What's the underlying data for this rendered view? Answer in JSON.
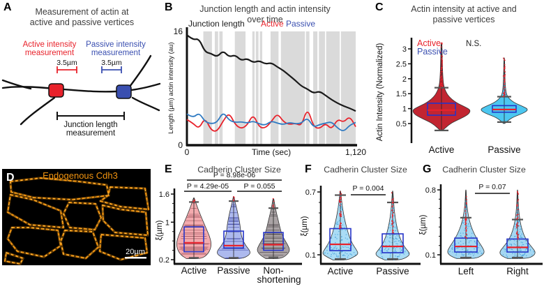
{
  "panel_a": {
    "label": "A",
    "title_line1": "Measurement of actin at",
    "title_line2": "active and passive vertices",
    "active_measure_line1": "Active intensity",
    "active_measure_line2": "measurement",
    "passive_measure_line1": "Passive intensity",
    "passive_measure_line2": "measurement",
    "active_scale": "3.5µm",
    "passive_scale": "3.5µm",
    "junction_line1": "Junction length",
    "junction_line2": "measurement",
    "active_color": "#e8222b",
    "passive_color": "#3a4fb0"
  },
  "panel_b": {
    "label": "B",
    "title_line1": "Junction length and actin intensity",
    "title_line2": "over time"
  },
  "panel_c": {
    "label": "C",
    "title_line1": "Actin intensity at active and",
    "title_line2": "passive vertices"
  },
  "panel_d": {
    "label": "D",
    "title": "Endogenous Cdh3",
    "scale_label": "20µm",
    "stain_color": "#f29410"
  },
  "panel_e": {
    "label": "E",
    "title": "Cadherin Cluster Size"
  },
  "panel_f": {
    "label": "F",
    "title": "Cadherin Cluster Size"
  },
  "panel_g": {
    "label": "G",
    "title": "Cadherin Cluster Size"
  },
  "chart_data": [
    {
      "id": "b_timeseries",
      "type": "line",
      "title": "Junction length and actin intensity over time",
      "xlabel": "Time (sec)",
      "ylabel": "Length (µm) actin intensity (au)",
      "xlim": [
        0,
        1120
      ],
      "ylim": [
        0,
        16
      ],
      "x_ticks": [
        [
          0,
          "0"
        ],
        [
          1120,
          "1,120"
        ]
      ],
      "y_ticks": [
        [
          16,
          "16"
        ],
        [
          0,
          "0"
        ]
      ],
      "legend": [
        {
          "label": "Junction length",
          "color": "#1a1a1a"
        },
        {
          "label": "Active",
          "color": "#e8222b"
        },
        {
          "label": "Passive",
          "color": "#3a4fb0"
        }
      ],
      "shaded_bands_x": [
        [
          109,
          166
        ],
        [
          185,
          207
        ],
        [
          215,
          237
        ],
        [
          318,
          389
        ],
        [
          434,
          449
        ],
        [
          457,
          475
        ],
        [
          484,
          500
        ],
        [
          555,
          608
        ],
        [
          624,
          783
        ],
        [
          790,
          813
        ],
        [
          838,
          866
        ],
        [
          876,
          916
        ],
        [
          924,
          1014
        ],
        [
          1022,
          1120
        ]
      ],
      "x": [
        0,
        40,
        80,
        120,
        160,
        200,
        240,
        280,
        320,
        360,
        400,
        440,
        480,
        520,
        560,
        600,
        640,
        680,
        720,
        760,
        800,
        840,
        880,
        920,
        960,
        1000,
        1040,
        1080,
        1120
      ],
      "series": [
        {
          "name": "Junction length",
          "color": "#1a1a1a",
          "y": [
            15.5,
            14.8,
            15.0,
            13.1,
            12.9,
            12.4,
            13.3,
            12.4,
            12.7,
            11.9,
            12.2,
            11.6,
            11.9,
            11.4,
            11.6,
            11.0,
            10.5,
            9.8,
            9.1,
            8.3,
            7.9,
            7.3,
            7.6,
            7.0,
            6.4,
            5.9,
            5.5,
            5.2,
            4.8
          ]
        },
        {
          "name": "Active",
          "color": "#e8222b",
          "y": [
            3.6,
            3.1,
            2.3,
            3.9,
            2.1,
            1.9,
            3.4,
            4.6,
            2.9,
            2.3,
            2.8,
            4.4,
            2.5,
            2.4,
            3.3,
            4.5,
            3.3,
            2.9,
            3.1,
            2.7,
            5.3,
            2.6,
            2.3,
            3.1,
            2.2,
            3.7,
            3.2,
            4.1,
            2.6
          ]
        },
        {
          "name": "Passive",
          "color": "#2f7ac2",
          "y": [
            4.4,
            3.8,
            4.6,
            3.3,
            3.0,
            3.2,
            4.7,
            3.5,
            3.2,
            3.3,
            3.1,
            3.4,
            3.0,
            2.8,
            3.4,
            3.1,
            2.9,
            3.2,
            3.0,
            3.1,
            3.9,
            2.5,
            2.9,
            3.1,
            3.3,
            2.4,
            1.9,
            2.8,
            3.2
          ]
        }
      ]
    },
    {
      "id": "c_violins",
      "type": "violin",
      "title": "Actin intensity at active and passive vertices",
      "ylabel": "Actin Intensity (Normalized)",
      "ylim": [
        0.2,
        3.4
      ],
      "y_ticks": [
        0.5,
        1,
        1.5,
        2,
        2.5,
        3
      ],
      "annotation": "N.S.",
      "legend": [
        {
          "label": "Active",
          "color": "#e8222b"
        },
        {
          "label": "Passive",
          "color": "#3a4fb0"
        }
      ],
      "categories": [
        "Active",
        "Passive"
      ],
      "violins": [
        {
          "name": "Active",
          "fill": "#c22531",
          "median": 0.95,
          "q1": 0.78,
          "q3": 1.18,
          "whisker_lo": 0.27,
          "whisker_hi": 1.7,
          "outliers_to": 3.25,
          "profile": [
            [
              0.27,
              0.04
            ],
            [
              0.5,
              0.3
            ],
            [
              0.65,
              0.62
            ],
            [
              0.8,
              0.92
            ],
            [
              0.95,
              1.0
            ],
            [
              1.05,
              0.82
            ],
            [
              1.2,
              0.5
            ],
            [
              1.4,
              0.25
            ],
            [
              1.6,
              0.13
            ],
            [
              1.8,
              0.07
            ],
            [
              2.1,
              0.045
            ],
            [
              2.5,
              0.03
            ],
            [
              2.9,
              0.022
            ],
            [
              3.2,
              0.015
            ]
          ]
        },
        {
          "name": "Passive",
          "fill": "#4cc7f0",
          "median": 0.97,
          "q1": 0.88,
          "q3": 1.1,
          "whisker_lo": 0.55,
          "whisker_hi": 1.4,
          "outliers_to": 2.72,
          "profile": [
            [
              0.5,
              0.03
            ],
            [
              0.7,
              0.3
            ],
            [
              0.85,
              0.8
            ],
            [
              0.97,
              1.0
            ],
            [
              1.08,
              0.75
            ],
            [
              1.2,
              0.4
            ],
            [
              1.35,
              0.18
            ],
            [
              1.5,
              0.08
            ],
            [
              1.8,
              0.04
            ],
            [
              2.2,
              0.025
            ],
            [
              2.7,
              0.015
            ]
          ]
        }
      ]
    },
    {
      "id": "e_violins",
      "type": "violin",
      "title": "Cadherin Cluster Size",
      "ylabel": "ξ(µm)",
      "ylim": [
        0.2,
        1.6
      ],
      "y_ticks": [
        1.6,
        1,
        0.2
      ],
      "y_minor_ticks": [
        0.4,
        0.6,
        0.8,
        1.2,
        1.4
      ],
      "p_values": [
        {
          "label": "P = 8.98e-06",
          "between": [
            0,
            2
          ]
        },
        {
          "label": "P = 4.29e-05",
          "between": [
            0,
            1
          ]
        },
        {
          "label": "P = 0.055",
          "between": [
            1,
            2
          ]
        }
      ],
      "categories": [
        "Active",
        "Passive",
        [
          "Non-",
          "shortening"
        ]
      ],
      "violins": [
        {
          "name": "Active",
          "fill": "#f3abae",
          "stripe": "#a85b66",
          "median": 0.56,
          "q1": 0.37,
          "q3": 0.9,
          "whisker_lo": 0.24,
          "whisker_hi": 1.43,
          "outliers_to": 1.5,
          "profile": [
            [
              0.22,
              0.42
            ],
            [
              0.3,
              0.75
            ],
            [
              0.42,
              0.95
            ],
            [
              0.55,
              1.0
            ],
            [
              0.7,
              0.9
            ],
            [
              0.85,
              0.72
            ],
            [
              1.0,
              0.55
            ],
            [
              1.15,
              0.38
            ],
            [
              1.3,
              0.22
            ],
            [
              1.45,
              0.08
            ],
            [
              1.52,
              0.02
            ]
          ]
        },
        {
          "name": "Passive",
          "fill": "#adb9ee",
          "stripe": "#5058b0",
          "median": 0.5,
          "q1": 0.45,
          "q3": 0.81,
          "whisker_lo": 0.24,
          "whisker_hi": 1.45,
          "outliers_to": 1.55,
          "profile": [
            [
              0.22,
              0.5
            ],
            [
              0.3,
              0.95
            ],
            [
              0.38,
              1.0
            ],
            [
              0.5,
              0.72
            ],
            [
              0.65,
              0.5
            ],
            [
              0.8,
              0.42
            ],
            [
              0.95,
              0.38
            ],
            [
              1.1,
              0.3
            ],
            [
              1.3,
              0.18
            ],
            [
              1.45,
              0.07
            ],
            [
              1.55,
              0.02
            ]
          ]
        },
        {
          "name": "Non-shortening",
          "fill": "#aaa3a5",
          "stripe": "#5c5458",
          "median": 0.52,
          "q1": 0.4,
          "q3": 0.78,
          "whisker_lo": 0.25,
          "whisker_hi": 1.3,
          "outliers_to": 1.55,
          "profile": [
            [
              0.22,
              0.45
            ],
            [
              0.3,
              0.8
            ],
            [
              0.4,
              1.0
            ],
            [
              0.52,
              0.85
            ],
            [
              0.65,
              0.62
            ],
            [
              0.8,
              0.45
            ],
            [
              0.95,
              0.35
            ],
            [
              1.1,
              0.25
            ],
            [
              1.25,
              0.15
            ],
            [
              1.4,
              0.07
            ],
            [
              1.5,
              0.03
            ]
          ]
        }
      ]
    },
    {
      "id": "f_violins",
      "type": "violin",
      "title": "Cadherin Cluster Size",
      "ylabel": "ξ(µm)",
      "ylim": [
        0.04,
        0.74
      ],
      "y_ticks": [
        0.7,
        0.1
      ],
      "y_minor_ticks": [
        0.2,
        0.3,
        0.4,
        0.5,
        0.6
      ],
      "p_values": [
        {
          "label": "P = 0.004",
          "between": [
            0,
            1
          ]
        }
      ],
      "categories": [
        "Active",
        "Passive"
      ],
      "violins": [
        {
          "name": "Active",
          "fill": "#aadcf5",
          "dot": "#3f9fd8",
          "median": 0.2,
          "q1": 0.14,
          "q3": 0.35,
          "whisker_lo": 0.06,
          "whisker_hi": 0.67,
          "outliers_to": 0.71,
          "profile": [
            [
              0.05,
              0.4
            ],
            [
              0.08,
              0.75
            ],
            [
              0.11,
              1.0
            ],
            [
              0.15,
              0.88
            ],
            [
              0.2,
              0.68
            ],
            [
              0.27,
              0.5
            ],
            [
              0.35,
              0.36
            ],
            [
              0.45,
              0.22
            ],
            [
              0.55,
              0.12
            ],
            [
              0.65,
              0.05
            ],
            [
              0.71,
              0.02
            ]
          ]
        },
        {
          "name": "Passive",
          "fill": "#aadcf5",
          "dot": "#3f9fd8",
          "median": 0.18,
          "q1": 0.12,
          "q3": 0.3,
          "whisker_lo": 0.06,
          "whisker_hi": 0.6,
          "outliers_to": 0.71,
          "profile": [
            [
              0.05,
              0.45
            ],
            [
              0.08,
              0.85
            ],
            [
              0.11,
              1.0
            ],
            [
              0.15,
              0.8
            ],
            [
              0.2,
              0.58
            ],
            [
              0.27,
              0.4
            ],
            [
              0.35,
              0.26
            ],
            [
              0.45,
              0.15
            ],
            [
              0.55,
              0.08
            ],
            [
              0.65,
              0.04
            ],
            [
              0.71,
              0.015
            ]
          ]
        }
      ]
    },
    {
      "id": "g_violins",
      "type": "violin",
      "title": "Cadherin Cluster Size",
      "ylabel": "ξ(µm)",
      "ylim": [
        0.04,
        0.84
      ],
      "y_ticks": [
        0.8,
        0.1
      ],
      "y_minor_ticks": [
        0.2,
        0.3,
        0.4,
        0.5,
        0.6,
        0.7
      ],
      "p_values": [
        {
          "label": "P = 0.07",
          "between": [
            0,
            1
          ]
        }
      ],
      "categories": [
        "Left",
        "Right"
      ],
      "violins": [
        {
          "name": "Left",
          "fill": "#a5d7f2",
          "dot": "#3f9fd8",
          "median": 0.19,
          "q1": 0.13,
          "q3": 0.28,
          "whisker_lo": 0.07,
          "whisker_hi": 0.5,
          "outliers_to": 0.73,
          "profile": [
            [
              0.06,
              0.5
            ],
            [
              0.09,
              0.85
            ],
            [
              0.13,
              1.0
            ],
            [
              0.18,
              0.88
            ],
            [
              0.24,
              0.68
            ],
            [
              0.32,
              0.45
            ],
            [
              0.42,
              0.25
            ],
            [
              0.52,
              0.13
            ],
            [
              0.62,
              0.06
            ],
            [
              0.73,
              0.025
            ],
            [
              0.8,
              0.015
            ]
          ]
        },
        {
          "name": "Right",
          "fill": "#a5d7f2",
          "dot": "#3f9fd8",
          "median": 0.18,
          "q1": 0.13,
          "q3": 0.27,
          "whisker_lo": 0.07,
          "whisker_hi": 0.48,
          "outliers_to": 0.79,
          "profile": [
            [
              0.06,
              0.55
            ],
            [
              0.09,
              0.9
            ],
            [
              0.13,
              1.0
            ],
            [
              0.18,
              0.8
            ],
            [
              0.24,
              0.55
            ],
            [
              0.32,
              0.33
            ],
            [
              0.42,
              0.18
            ],
            [
              0.52,
              0.1
            ],
            [
              0.62,
              0.05
            ],
            [
              0.72,
              0.03
            ],
            [
              0.8,
              0.015
            ]
          ]
        }
      ]
    }
  ]
}
